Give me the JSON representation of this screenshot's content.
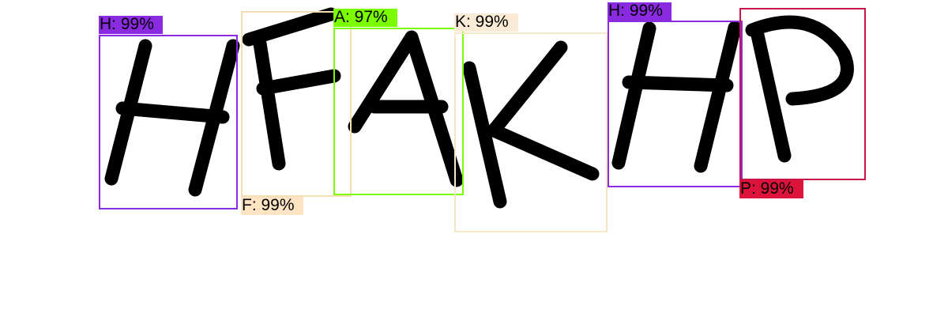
{
  "detections": [
    {
      "letter": "H",
      "label": "H: 99%",
      "color": "#8a2be2",
      "box_color": "#8a2be2",
      "label_bg": "#8a2be2",
      "label_pos": "above"
    },
    {
      "letter": "F",
      "label": "F: 99%",
      "color": "#ffe4c4",
      "box_color": "#f5deb3",
      "label_bg": "#ffe4c4",
      "label_pos": "below"
    },
    {
      "letter": "A",
      "label": "A: 97%",
      "color": "#7cfc00",
      "box_color": "#7cfc00",
      "label_bg": "#7cfc00",
      "label_pos": "above"
    },
    {
      "letter": "K",
      "label": "K: 99%",
      "color": "#faebd7",
      "box_color": "#f5e8c8",
      "label_bg": "#faebd7",
      "label_pos": "above"
    },
    {
      "letter": "H",
      "label": "H: 99%",
      "color": "#8a2be2",
      "box_color": "#8a2be2",
      "label_bg": "#8a2be2",
      "label_pos": "above"
    },
    {
      "letter": "P",
      "label": "P: 99%",
      "color": "#dc143c",
      "box_color": "#c8154a",
      "label_bg": "#dc143c",
      "label_pos": "below"
    }
  ]
}
